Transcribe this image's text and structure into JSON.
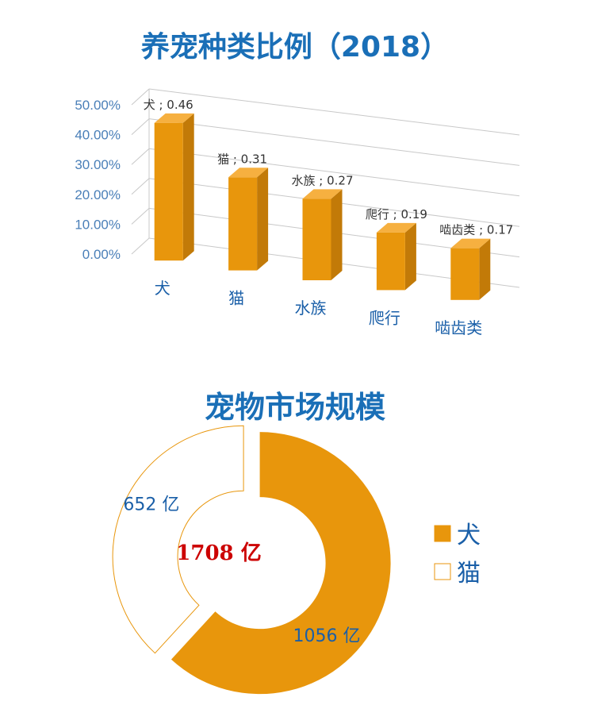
{
  "colors": {
    "title": "#1a6fb7",
    "bar": "#e8960c",
    "bar_side": "#c27a08",
    "bar_top": "#f6b040",
    "accent_total": "#cc0000",
    "axis_text": "#4a7fb8"
  },
  "chart_data": [
    {
      "type": "bar",
      "title": "养宠种类比例（2018）",
      "categories": [
        "犬",
        "猫",
        "水族",
        "爬行",
        "啮齿类"
      ],
      "values": [
        0.46,
        0.31,
        0.27,
        0.19,
        0.17
      ],
      "data_labels": [
        "犬 ; 0.46",
        "猫 ; 0.31",
        "水族 ; 0.27",
        "爬行 ; 0.19",
        "啮齿类 ; 0.17"
      ],
      "yticks": [
        "0.00%",
        "10.00%",
        "20.00%",
        "30.00%",
        "40.00%",
        "50.00%"
      ],
      "ylim": [
        0,
        0.5
      ],
      "grid": true,
      "style": "3d-column"
    },
    {
      "type": "pie",
      "style": "donut",
      "title": "宠物市场规模",
      "center_label": "1708 亿",
      "categories": [
        "犬",
        "猫"
      ],
      "values": [
        1056,
        652
      ],
      "slice_labels": [
        "1056 亿",
        "652 亿"
      ],
      "legend": [
        "犬",
        "猫"
      ],
      "legend_position": "right"
    }
  ]
}
